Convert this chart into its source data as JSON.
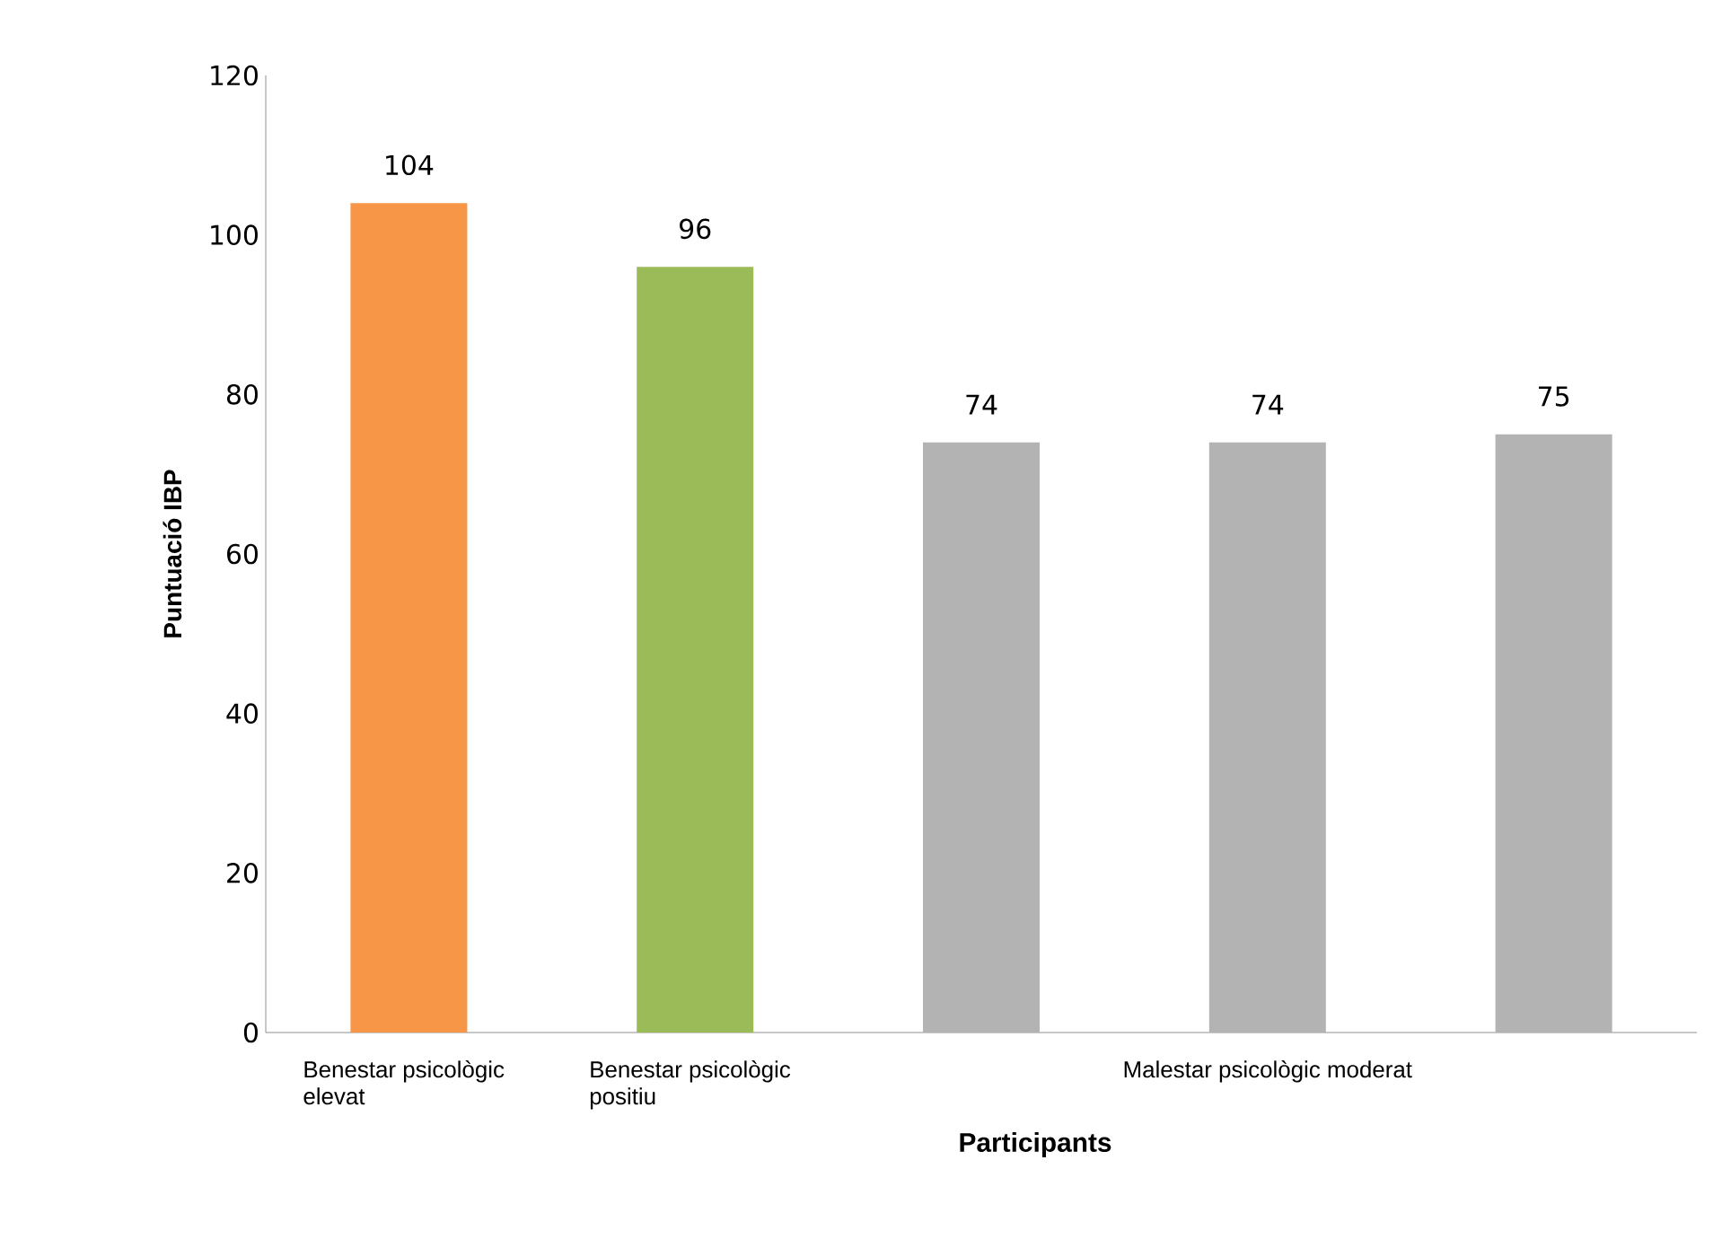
{
  "chart_data": {
    "type": "bar",
    "xlabel": "Participants",
    "ylabel": "Puntuació IBP",
    "categories": [
      "Benestar psicològic elevat",
      "Benestar psicològic positiu",
      null,
      "Malestar psicològic moderat",
      null
    ],
    "values": [
      104,
      96,
      74,
      74,
      75
    ],
    "colors": [
      "#f79646",
      "#9bbb59",
      "#b3b3b3",
      "#b3b3b3",
      "#b3b3b3"
    ],
    "ylim": [
      0,
      120
    ],
    "yticks": [
      0,
      20,
      40,
      60,
      80,
      100,
      120
    ],
    "data_labels": true,
    "grid": false
  }
}
